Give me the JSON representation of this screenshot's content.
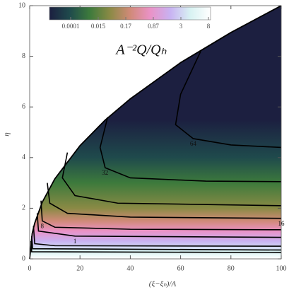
{
  "chart_data": {
    "type": "contour",
    "title": "A⁻²Q/Qₕ",
    "x_label": "(ξ−ξₕ)/A",
    "y_label": "η",
    "xlim": [
      0,
      100
    ],
    "xticks": [
      0,
      20,
      40,
      60,
      80,
      100
    ],
    "ylim": [
      0,
      10
    ],
    "yticks": [
      0,
      2,
      4,
      6,
      8,
      10
    ],
    "colorbar": {
      "labels": [
        "0.0001",
        "0.015",
        "0.17",
        "0.87",
        "3",
        "8"
      ],
      "colors": [
        "#1c1f40",
        "#1f4a4c",
        "#3d7a3c",
        "#8a8a45",
        "#d08a78",
        "#ea92c6",
        "#c8b2f2",
        "#d8f2f2",
        "#ffffff"
      ]
    },
    "region": {
      "x": [
        0,
        1,
        2,
        5,
        10,
        20,
        30,
        40,
        60,
        80,
        100
      ],
      "y": [
        0,
        1,
        1.41,
        2.24,
        3.16,
        4.47,
        5.48,
        6.32,
        7.75,
        8.94,
        10
      ],
      "gradient_y": [
        0,
        0.3,
        0.7,
        1.1,
        1.5,
        2,
        3,
        4,
        5.5
      ],
      "gradient_colors": [
        "#ffffff",
        "#d8f2f2",
        "#c8b2f2",
        "#ea92c6",
        "#d08a78",
        "#8a8a45",
        "#3d7a3c",
        "#1f4a4c",
        "#1c1f40"
      ]
    },
    "series": [
      {
        "name": "64",
        "label_at": 3,
        "x": [
          68,
          60,
          58,
          65,
          80,
          100
        ],
        "y": [
          8.2,
          6.5,
          5.3,
          4.75,
          4.5,
          4.4
        ]
      },
      {
        "name": "32",
        "label_at": 2,
        "x": [
          31,
          28,
          30,
          40,
          70,
          100
        ],
        "y": [
          5.6,
          4.4,
          3.6,
          3.2,
          3.07,
          3.05
        ]
      },
      {
        "x": [
          15,
          13,
          18,
          35,
          100
        ],
        "y": [
          4.2,
          3.2,
          2.5,
          2.2,
          2.1
        ]
      },
      {
        "name": "16",
        "label_at": 4,
        "x": [
          7,
          8,
          15,
          40,
          100
        ],
        "y": [
          3.0,
          2.2,
          1.8,
          1.65,
          1.6
        ]
      },
      {
        "name": "8",
        "label_at": 1,
        "x": [
          4.5,
          5,
          10,
          40,
          100
        ],
        "y": [
          2.3,
          1.5,
          1.25,
          1.17,
          1.15
        ]
      },
      {
        "name": "1",
        "label_at": 2,
        "x": [
          3,
          3.5,
          18,
          100
        ],
        "y": [
          1.8,
          1.1,
          0.9,
          0.85
        ]
      },
      {
        "x": [
          1.5,
          2,
          10,
          100
        ],
        "y": [
          1.3,
          0.6,
          0.52,
          0.5
        ]
      },
      {
        "x": [
          0.8,
          1.2,
          100
        ],
        "y": [
          0.9,
          0.4,
          0.35
        ]
      },
      {
        "x": [
          0.5,
          0.8,
          100
        ],
        "y": [
          0.7,
          0.28,
          0.25
        ]
      }
    ]
  }
}
